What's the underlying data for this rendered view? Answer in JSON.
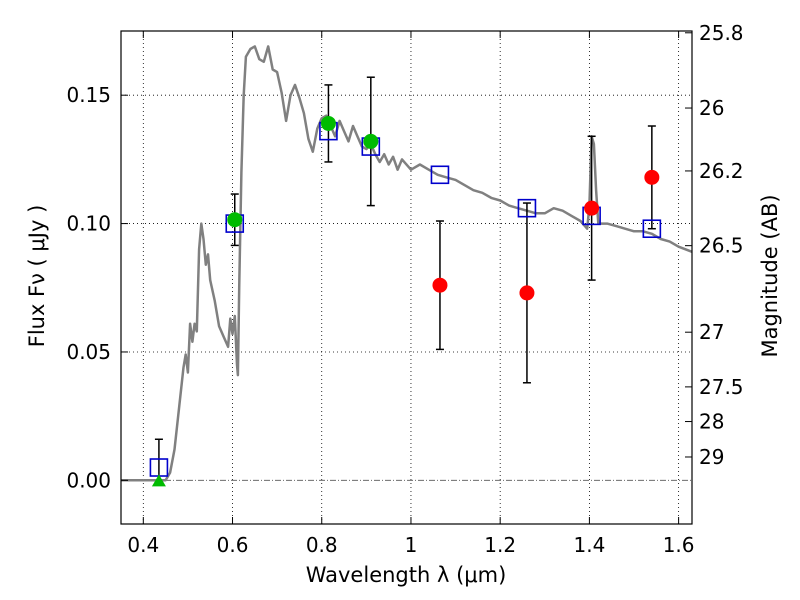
{
  "chart_data": {
    "type": "scatter",
    "xlabel": "Wavelength  λ (μm)",
    "ylabel": "Flux  Fν  ( μJy )",
    "y2label": "Magnitude (AB)",
    "xlim": [
      0.35,
      1.63
    ],
    "ylim": [
      -0.017,
      0.175
    ],
    "grid": true,
    "x_ticks": [
      0.4,
      0.6,
      0.8,
      1.0,
      1.2,
      1.4,
      1.6
    ],
    "x_tick_labels": [
      "0.4",
      "0.6",
      "0.8",
      "1",
      "1.2",
      "1.4",
      "1.6"
    ],
    "y_ticks": [
      0.0,
      0.05,
      0.1,
      0.15
    ],
    "y_tick_labels": [
      "0.00",
      "0.05",
      "0.10",
      "0.15"
    ],
    "y2_ticks": [
      {
        "label": "25.8",
        "flux": 0.1743
      },
      {
        "label": "26",
        "flux": 0.145
      },
      {
        "label": "26.2",
        "flux": 0.1205
      },
      {
        "label": "26.5",
        "flux": 0.0914
      },
      {
        "label": "27",
        "flux": 0.0577
      },
      {
        "label": "27.5",
        "flux": 0.0364
      },
      {
        "label": "28",
        "flux": 0.0229
      },
      {
        "label": "29",
        "flux": 0.0091
      }
    ],
    "colors": {
      "model": "#808080",
      "square": "#0000cc",
      "red_points": "#ff0000",
      "green_points": "#00bb00",
      "errorbar": "#000000"
    },
    "series": [
      {
        "kind": "line",
        "points": [
          [
            0.35,
            0.0
          ],
          [
            0.45,
            0.0
          ],
          [
            0.46,
            0.003
          ],
          [
            0.47,
            0.012
          ],
          [
            0.48,
            0.028
          ],
          [
            0.49,
            0.044
          ],
          [
            0.495,
            0.049
          ],
          [
            0.5,
            0.042
          ],
          [
            0.505,
            0.061
          ],
          [
            0.51,
            0.054
          ],
          [
            0.515,
            0.061
          ],
          [
            0.52,
            0.058
          ],
          [
            0.525,
            0.09
          ],
          [
            0.53,
            0.1
          ],
          [
            0.535,
            0.094
          ],
          [
            0.54,
            0.084
          ],
          [
            0.545,
            0.088
          ],
          [
            0.55,
            0.078
          ],
          [
            0.56,
            0.07
          ],
          [
            0.57,
            0.06
          ],
          [
            0.58,
            0.056
          ],
          [
            0.59,
            0.052
          ],
          [
            0.595,
            0.063
          ],
          [
            0.6,
            0.057
          ],
          [
            0.605,
            0.064
          ],
          [
            0.61,
            0.045
          ],
          [
            0.612,
            0.041
          ],
          [
            0.615,
            0.075
          ],
          [
            0.62,
            0.12
          ],
          [
            0.625,
            0.15
          ],
          [
            0.63,
            0.165
          ],
          [
            0.64,
            0.168
          ],
          [
            0.65,
            0.169
          ],
          [
            0.66,
            0.164
          ],
          [
            0.67,
            0.163
          ],
          [
            0.68,
            0.169
          ],
          [
            0.69,
            0.16
          ],
          [
            0.7,
            0.159
          ],
          [
            0.71,
            0.151
          ],
          [
            0.72,
            0.14
          ],
          [
            0.73,
            0.15
          ],
          [
            0.74,
            0.154
          ],
          [
            0.75,
            0.149
          ],
          [
            0.76,
            0.143
          ],
          [
            0.77,
            0.133
          ],
          [
            0.78,
            0.128
          ],
          [
            0.79,
            0.137
          ],
          [
            0.8,
            0.141
          ],
          [
            0.81,
            0.142
          ],
          [
            0.82,
            0.138
          ],
          [
            0.83,
            0.134
          ],
          [
            0.84,
            0.14
          ],
          [
            0.85,
            0.136
          ],
          [
            0.86,
            0.132
          ],
          [
            0.87,
            0.138
          ],
          [
            0.88,
            0.134
          ],
          [
            0.89,
            0.13
          ],
          [
            0.9,
            0.129
          ],
          [
            0.91,
            0.131
          ],
          [
            0.92,
            0.127
          ],
          [
            0.93,
            0.124
          ],
          [
            0.94,
            0.127
          ],
          [
            0.95,
            0.123
          ],
          [
            0.96,
            0.126
          ],
          [
            0.97,
            0.121
          ],
          [
            0.98,
            0.125
          ],
          [
            1.0,
            0.121
          ],
          [
            1.02,
            0.123
          ],
          [
            1.04,
            0.121
          ],
          [
            1.06,
            0.119
          ],
          [
            1.08,
            0.118
          ],
          [
            1.1,
            0.117
          ],
          [
            1.12,
            0.115
          ],
          [
            1.14,
            0.113
          ],
          [
            1.16,
            0.112
          ],
          [
            1.18,
            0.11
          ],
          [
            1.2,
            0.109
          ],
          [
            1.22,
            0.107
          ],
          [
            1.24,
            0.106
          ],
          [
            1.26,
            0.105
          ],
          [
            1.28,
            0.104
          ],
          [
            1.3,
            0.104
          ],
          [
            1.32,
            0.106
          ],
          [
            1.34,
            0.105
          ],
          [
            1.36,
            0.103
          ],
          [
            1.38,
            0.101
          ],
          [
            1.395,
            0.098
          ],
          [
            1.4,
            0.107
          ],
          [
            1.405,
            0.134
          ],
          [
            1.41,
            0.131
          ],
          [
            1.415,
            0.113
          ],
          [
            1.42,
            0.1
          ],
          [
            1.44,
            0.1
          ],
          [
            1.46,
            0.099
          ],
          [
            1.48,
            0.098
          ],
          [
            1.5,
            0.097
          ],
          [
            1.52,
            0.097
          ],
          [
            1.54,
            0.096
          ],
          [
            1.56,
            0.094
          ],
          [
            1.58,
            0.093
          ],
          [
            1.6,
            0.091
          ],
          [
            1.63,
            0.089
          ]
        ]
      },
      {
        "kind": "square",
        "points": [
          [
            0.435,
            0.005
          ],
          [
            0.605,
            0.1
          ],
          [
            0.815,
            0.136
          ],
          [
            0.91,
            0.13
          ],
          [
            1.065,
            0.119
          ],
          [
            1.26,
            0.106
          ],
          [
            1.405,
            0.103
          ],
          [
            1.54,
            0.098
          ]
        ]
      },
      {
        "kind": "green-circle",
        "points": [
          {
            "x": 0.605,
            "y": 0.1015,
            "err": 0.01
          },
          {
            "x": 0.815,
            "y": 0.139,
            "err": 0.015
          },
          {
            "x": 0.91,
            "y": 0.132,
            "err": 0.025
          }
        ]
      },
      {
        "kind": "red-circle",
        "points": [
          {
            "x": 1.065,
            "y": 0.076,
            "err": 0.025
          },
          {
            "x": 1.26,
            "y": 0.073,
            "err": 0.035
          },
          {
            "x": 1.405,
            "y": 0.106,
            "err": 0.028
          },
          {
            "x": 1.54,
            "y": 0.118,
            "err": 0.02
          }
        ]
      },
      {
        "kind": "green-triangle",
        "points": [
          {
            "x": 0.435,
            "y": 0.0,
            "err_hi": 0.016
          }
        ]
      }
    ]
  }
}
